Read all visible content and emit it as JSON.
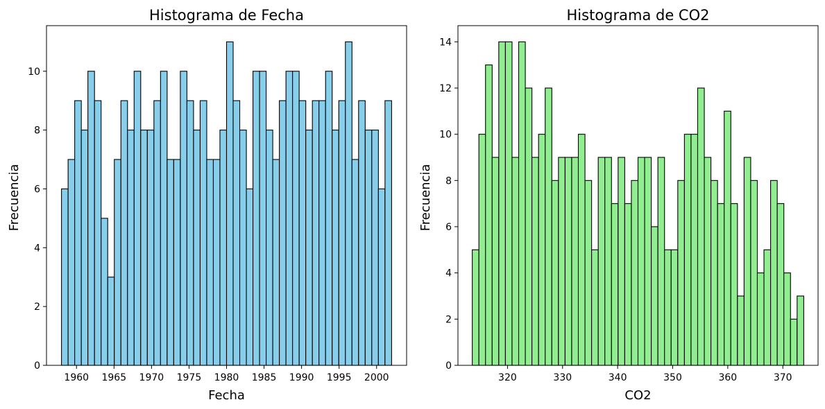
{
  "chart_data": [
    {
      "type": "bar",
      "title": "Histograma de Fecha",
      "xlabel": "Fecha",
      "ylabel": "Frecuencia",
      "color": "#87ceeb",
      "edge_color": "#000000",
      "x_range": [
        1958.0,
        2002.0
      ],
      "xlim": [
        1956.0,
        2004.0
      ],
      "ylim": [
        0,
        11.55
      ],
      "xticks": [
        1960,
        1965,
        1970,
        1975,
        1980,
        1985,
        1990,
        1995,
        2000
      ],
      "yticks": [
        0,
        2,
        4,
        6,
        8,
        10
      ],
      "values": [
        6,
        7,
        9,
        8,
        10,
        9,
        5,
        3,
        7,
        9,
        8,
        10,
        8,
        8,
        9,
        10,
        7,
        7,
        10,
        9,
        8,
        9,
        7,
        7,
        8,
        11,
        9,
        8,
        6,
        10,
        10,
        8,
        7,
        9,
        10,
        10,
        9,
        8,
        9,
        9,
        10,
        8,
        9,
        11,
        7,
        9,
        8,
        8,
        6,
        9
      ]
    },
    {
      "type": "bar",
      "title": "Histograma de CO2",
      "xlabel": "CO2",
      "ylabel": "Frecuencia",
      "color": "#90ee90",
      "edge_color": "#000000",
      "x_range": [
        313.6,
        373.8
      ],
      "xlim": [
        311.0,
        376.4
      ],
      "ylim": [
        0,
        14.7
      ],
      "xticks": [
        320,
        330,
        340,
        350,
        360,
        370
      ],
      "yticks": [
        0,
        2,
        4,
        6,
        8,
        10,
        12,
        14
      ],
      "values": [
        5,
        10,
        13,
        9,
        14,
        14,
        9,
        14,
        12,
        9,
        10,
        12,
        8,
        9,
        9,
        9,
        10,
        8,
        5,
        9,
        9,
        7,
        9,
        7,
        8,
        9,
        9,
        6,
        9,
        5,
        5,
        8,
        10,
        10,
        12,
        9,
        8,
        7,
        11,
        7,
        3,
        9,
        8,
        4,
        5,
        8,
        7,
        4,
        2,
        3
      ]
    }
  ]
}
